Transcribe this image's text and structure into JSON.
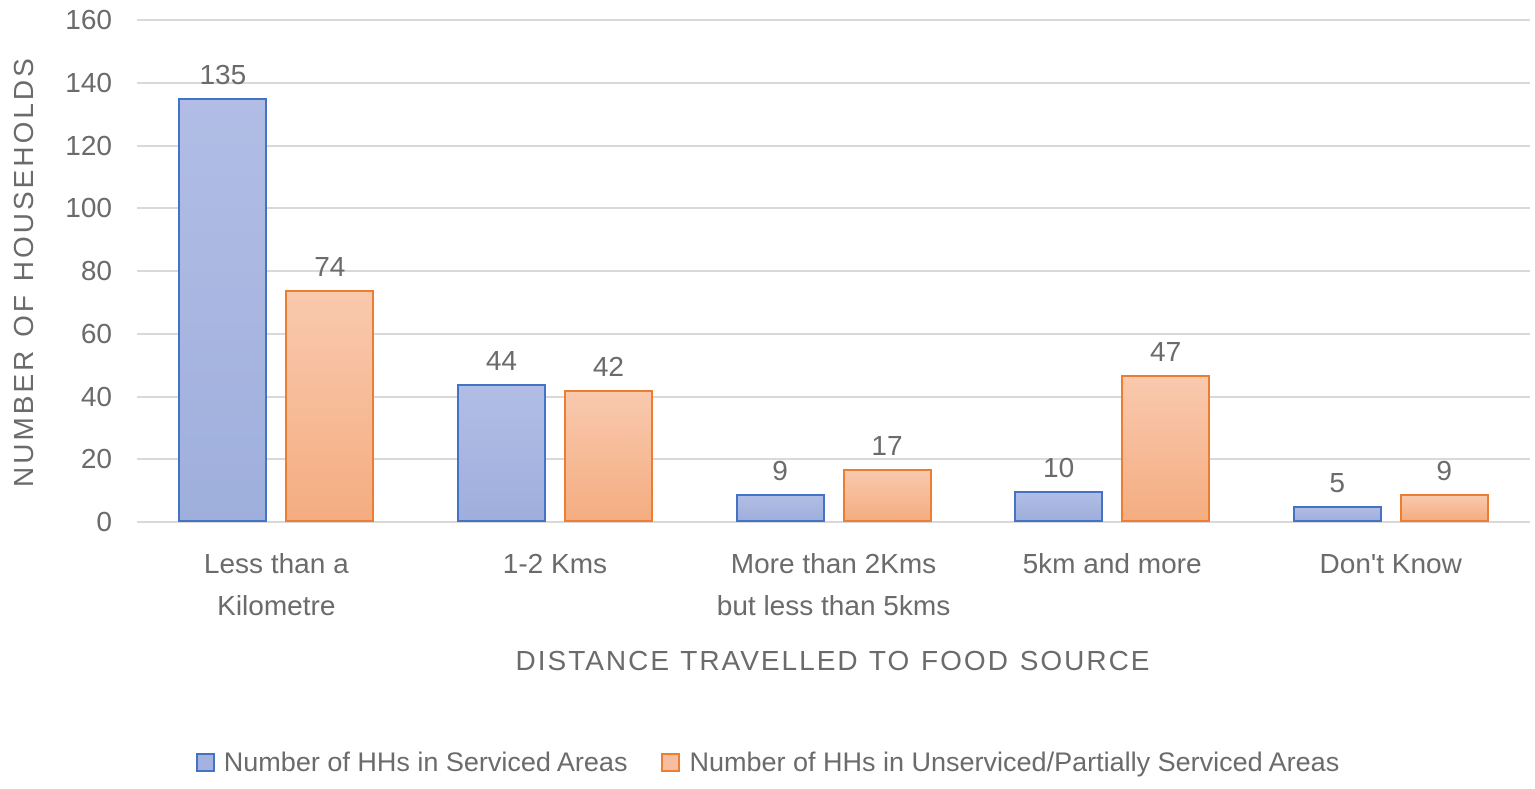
{
  "chart_data": {
    "type": "bar",
    "title": "",
    "categories": [
      "Less than a\nKilometre",
      "1-2 Kms",
      "More than 2Kms\nbut less than 5kms",
      "5km and more",
      "Don't Know"
    ],
    "series": [
      {
        "key": "serviced",
        "name": "Number of HHs in Serviced Areas",
        "values": [
          135,
          44,
          9,
          10,
          5
        ],
        "border_color": "#4472c4",
        "fill_top": "#b1bde5",
        "fill_bottom": "#9fafdc",
        "swatch_fill": "#a3b2de"
      },
      {
        "key": "unserviced",
        "name": "Number of HHs in Unserviced/Partially Serviced Areas",
        "values": [
          74,
          42,
          17,
          47,
          9
        ],
        "border_color": "#ed7d31",
        "fill_top": "#f9c9ae",
        "fill_bottom": "#f4ad81",
        "swatch_fill": "#f6bda1"
      }
    ],
    "xlabel": "DISTANCE TRAVELLED TO FOOD SOURCE",
    "ylabel": "NUMBER OF HOUSEHOLDS",
    "ylim": [
      0,
      160
    ],
    "yticks": [
      0,
      20,
      40,
      60,
      80,
      100,
      120,
      140,
      160
    ],
    "grid": true,
    "value_labels": true,
    "legend_position": "bottom",
    "colors": {
      "gridline": "#d9d9d9",
      "axis_line": "#d9d9d9",
      "text": "#6b6b6b"
    }
  }
}
